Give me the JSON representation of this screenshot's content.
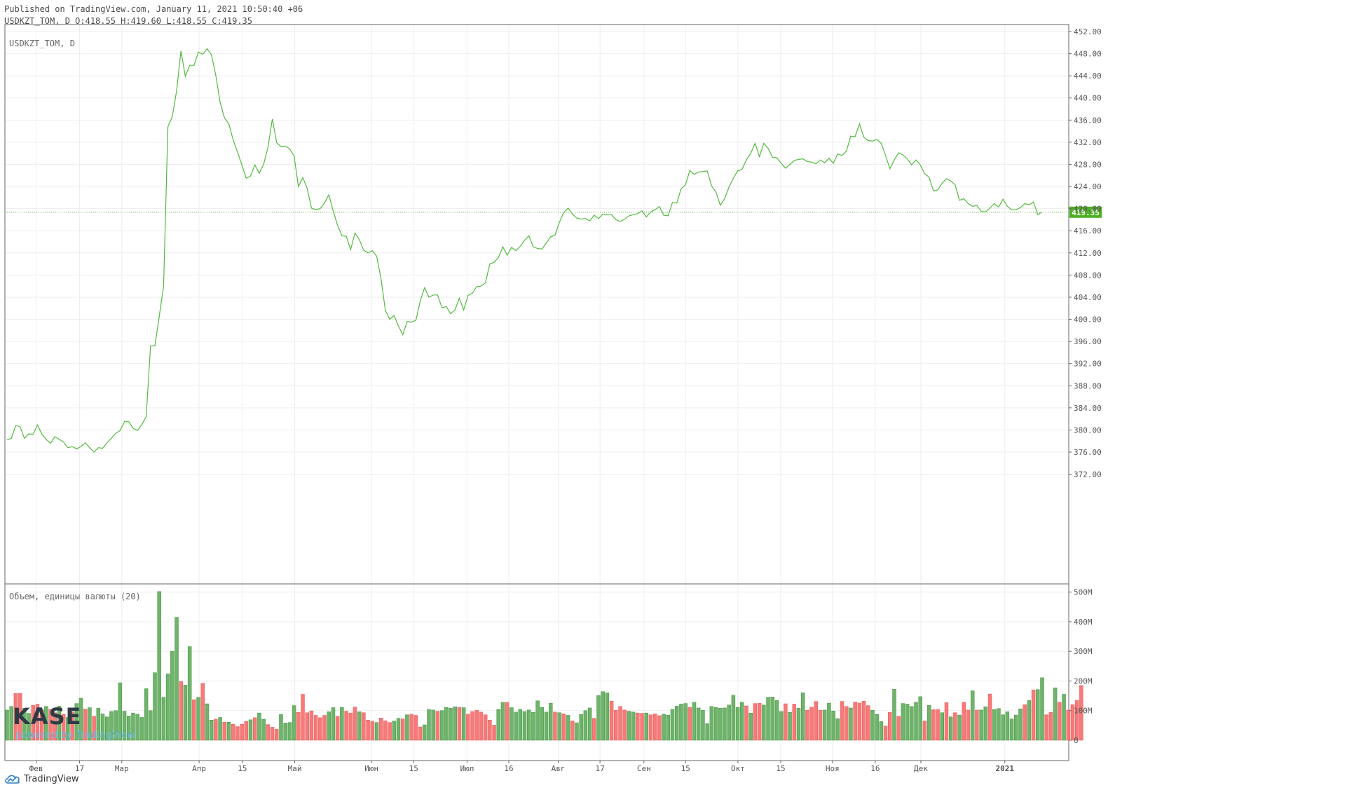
{
  "header": {
    "published": "Published on TradingView.com, January 11, 2021 10:50:40 +06",
    "ohlc": "USDKZT_TOM, D O:418.55 H:419.60 L:418.55 C:419.35"
  },
  "legend": {
    "main": "USDKZT_TOM, D",
    "volume": "Объем, единицы валюты (20)"
  },
  "watermark": {
    "logo": "KASE",
    "powered": "powered by TradingView"
  },
  "footer": {
    "brand": "TradingView"
  },
  "last_price_label": "419.35",
  "colors": {
    "line": "#53b940",
    "price_tag": "#4caf23",
    "vol_up": "#6fb46b",
    "vol_down": "#f77a79",
    "grid": "#eeeeee"
  },
  "chart_data": [
    {
      "type": "line",
      "name": "USDKZT_TOM, D",
      "x_ticks": [
        "Фев",
        "17",
        "Мар",
        "Апр",
        "15",
        "Май",
        "Июн",
        "15",
        "Июл",
        "16",
        "Авг",
        "17",
        "Сен",
        "15",
        "Окт",
        "15",
        "Ноя",
        "16",
        "Дек",
        "2021"
      ],
      "y_ticks": [
        "452.00",
        "448.00",
        "444.00",
        "440.00",
        "436.00",
        "432.00",
        "428.00",
        "424.00",
        "420.00",
        "416.00",
        "412.00",
        "408.00",
        "404.00",
        "400.00",
        "396.00",
        "392.00",
        "388.00",
        "384.00",
        "380.00",
        "376.00",
        "372.00"
      ],
      "ylim": [
        372,
        452
      ],
      "last_value": 419.35,
      "values": [
        378.2,
        378.5,
        380.8,
        380.6,
        378.5,
        379.3,
        379.2,
        380.9,
        379.3,
        378.3,
        377.6,
        378.8,
        378.3,
        377.8,
        376.8,
        377.0,
        376.6,
        377.0,
        377.7,
        376.8,
        376.0,
        376.8,
        376.7,
        377.7,
        378.5,
        379.4,
        379.9,
        381.5,
        381.5,
        380.3,
        379.9,
        381.0,
        382.4,
        395.2,
        395.2,
        400.5,
        406.0,
        434.8,
        436.6,
        441.3,
        448.5,
        443.9,
        445.9,
        445.9,
        448.3,
        447.9,
        448.9,
        447.8,
        444.1,
        439.2,
        436.4,
        435.3,
        432.4,
        430.2,
        427.9,
        425.5,
        425.9,
        427.9,
        426.4,
        428.0,
        431.1,
        436.2,
        431.9,
        431.2,
        431.3,
        430.8,
        429.5,
        424.0,
        425.6,
        423.7,
        420.1,
        419.8,
        420.0,
        421.0,
        422.5,
        419.6,
        417.0,
        415.1,
        415.0,
        412.6,
        415.6,
        414.4,
        412.5,
        412.0,
        412.4,
        411.4,
        407.3,
        401.6,
        400.0,
        400.7,
        398.8,
        397.2,
        399.6,
        399.5,
        399.8,
        403.3,
        405.7,
        404.0,
        404.4,
        404.4,
        402.1,
        402.3,
        401.0,
        401.7,
        403.8,
        401.7,
        404.3,
        404.7,
        405.9,
        406.0,
        406.6,
        410.0,
        410.3,
        411.2,
        413.1,
        411.6,
        413.0,
        412.4,
        413.2,
        414.3,
        415.1,
        413.1,
        412.8,
        412.7,
        413.8,
        414.9,
        415.2,
        417.5,
        419.3,
        420.1,
        419.0,
        418.3,
        418.1,
        418.2,
        417.8,
        418.8,
        418.2,
        419.0,
        418.9,
        418.9,
        418.0,
        417.7,
        418.1,
        418.7,
        418.9,
        419.1,
        419.6,
        418.5,
        419.4,
        419.8,
        420.4,
        418.8,
        418.7,
        421.1,
        421.0,
        423.6,
        424.3,
        426.9,
        426.2,
        426.6,
        426.7,
        426.8,
        424.1,
        423.0,
        420.6,
        421.8,
        423.9,
        425.5,
        426.8,
        427.1,
        428.8,
        430.0,
        431.8,
        429.4,
        431.8,
        430.9,
        429.3,
        429.2,
        428.2,
        427.3,
        428.0,
        428.7,
        428.9,
        429.0,
        428.5,
        428.4,
        428.1,
        428.8,
        428.3,
        429.1,
        428.2,
        429.9,
        429.6,
        430.4,
        433.1,
        433.0,
        435.3,
        432.9,
        432.3,
        432.2,
        432.5,
        431.8,
        429.6,
        427.2,
        428.8,
        430.1,
        429.7,
        429.0,
        427.9,
        428.8,
        427.9,
        426.3,
        425.7,
        423.2,
        423.4,
        424.6,
        425.4,
        425.0,
        424.3,
        421.5,
        421.8,
        420.9,
        420.4,
        420.6,
        419.5,
        419.4,
        420.1,
        420.9,
        420.3,
        421.7,
        420.4,
        419.8,
        419.8,
        420.2,
        420.9,
        420.7,
        421.2,
        418.9,
        419.4
      ]
    },
    {
      "type": "bar",
      "name": "Объем, единицы валюты (20)",
      "y_ticks": [
        "500M",
        "400M",
        "300M",
        "200M",
        "100M",
        "0"
      ],
      "ylim": [
        0,
        500
      ],
      "unit": "M",
      "values": [
        102,
        114,
        158,
        158,
        108,
        91,
        118,
        122,
        103,
        114,
        104,
        93,
        115,
        88,
        77,
        96,
        124,
        142,
        105,
        110,
        81,
        108,
        89,
        79,
        97,
        100,
        194,
        98,
        82,
        92,
        88,
        77,
        174,
        100,
        228,
        502,
        145,
        224,
        300,
        415,
        198,
        186,
        316,
        137,
        145,
        192,
        123,
        68,
        71,
        77,
        61,
        61,
        54,
        46,
        54,
        64,
        69,
        76,
        92,
        71,
        53,
        44,
        37,
        87,
        58,
        60,
        117,
        94,
        155,
        93,
        99,
        84,
        76,
        84,
        96,
        110,
        81,
        111,
        98,
        92,
        112,
        96,
        93,
        68,
        64,
        60,
        75,
        66,
        60,
        65,
        74,
        72,
        86,
        88,
        84,
        45,
        52,
        104,
        102,
        98,
        100,
        111,
        108,
        113,
        111,
        110,
        88,
        97,
        101,
        95,
        86,
        68,
        51,
        104,
        128,
        128,
        110,
        95,
        104,
        97,
        102,
        94,
        133,
        111,
        95,
        125,
        95,
        93,
        89,
        84,
        65,
        59,
        87,
        100,
        109,
        74,
        151,
        164,
        160,
        132,
        101,
        114,
        102,
        98,
        95,
        92,
        91,
        92,
        86,
        89,
        83,
        88,
        85,
        104,
        115,
        122,
        124,
        111,
        128,
        109,
        101,
        56,
        114,
        111,
        108,
        109,
        119,
        152,
        111,
        128,
        116,
        92,
        124,
        125,
        119,
        145,
        146,
        134,
        97,
        123,
        94,
        122,
        108,
        160,
        101,
        112,
        131,
        101,
        102,
        125,
        99,
        73,
        131,
        114,
        109,
        129,
        126,
        132,
        117,
        101,
        87,
        63,
        48,
        94,
        172,
        81,
        124,
        122,
        114,
        128,
        147,
        65,
        118,
        103,
        104,
        93,
        127,
        79,
        93,
        85,
        128,
        102,
        167,
        102,
        102,
        113,
        156,
        104,
        107,
        86,
        96,
        72,
        85,
        106,
        120,
        134,
        170,
        171,
        211,
        86,
        94,
        177,
        128,
        155,
        102,
        120,
        134,
        185
      ],
      "directions": [
        "u",
        "u",
        "d",
        "d",
        "u",
        "u",
        "d",
        "d",
        "d",
        "u",
        "d",
        "d",
        "u",
        "d",
        "u",
        "d",
        "u",
        "u",
        "d",
        "u",
        "d",
        "u",
        "u",
        "u",
        "u",
        "u",
        "u",
        "u",
        "u",
        "u",
        "u",
        "u",
        "u",
        "u",
        "u",
        "u",
        "u",
        "u",
        "u",
        "u",
        "d",
        "u",
        "u",
        "d",
        "u",
        "d",
        "u",
        "u",
        "d",
        "u",
        "d",
        "u",
        "d",
        "d",
        "d",
        "d",
        "u",
        "d",
        "u",
        "u",
        "d",
        "d",
        "d",
        "u",
        "u",
        "u",
        "u",
        "d",
        "d",
        "d",
        "d",
        "d",
        "d",
        "d",
        "u",
        "u",
        "d",
        "u",
        "d",
        "d",
        "d",
        "u",
        "d",
        "d",
        "d",
        "u",
        "d",
        "d",
        "d",
        "u",
        "u",
        "d",
        "u",
        "d",
        "d",
        "d",
        "u",
        "u",
        "u",
        "d",
        "u",
        "u",
        "u",
        "u",
        "d",
        "u",
        "d",
        "d",
        "d",
        "d",
        "d",
        "d",
        "d",
        "u",
        "u",
        "d",
        "u",
        "u",
        "u",
        "u",
        "u",
        "u",
        "u",
        "u",
        "u",
        "u",
        "d",
        "u",
        "d",
        "u",
        "d",
        "u",
        "u",
        "u",
        "u",
        "d",
        "u",
        "u",
        "u",
        "d",
        "d",
        "d",
        "d",
        "u",
        "u",
        "d",
        "d",
        "u",
        "d",
        "d",
        "d",
        "u",
        "u",
        "u",
        "u",
        "u",
        "u",
        "d",
        "u",
        "u",
        "u",
        "u",
        "u",
        "u",
        "u",
        "u",
        "u",
        "u",
        "u",
        "u",
        "d",
        "u",
        "d",
        "d",
        "u",
        "u",
        "u",
        "u",
        "u",
        "d",
        "u",
        "d",
        "u",
        "u",
        "d",
        "d",
        "d",
        "d",
        "u",
        "u",
        "u",
        "u",
        "d",
        "d",
        "u",
        "d",
        "d",
        "d",
        "d",
        "u",
        "u",
        "u",
        "d",
        "d",
        "u",
        "d",
        "u",
        "u",
        "u",
        "u",
        "u",
        "d",
        "u",
        "d",
        "d",
        "u",
        "d",
        "u",
        "d",
        "u",
        "d",
        "d",
        "u",
        "d",
        "u",
        "u",
        "d",
        "u",
        "u",
        "u",
        "u",
        "u",
        "u",
        "u",
        "d",
        "u",
        "d",
        "u",
        "u",
        "d",
        "d",
        "u",
        "d",
        "u"
      ]
    }
  ]
}
